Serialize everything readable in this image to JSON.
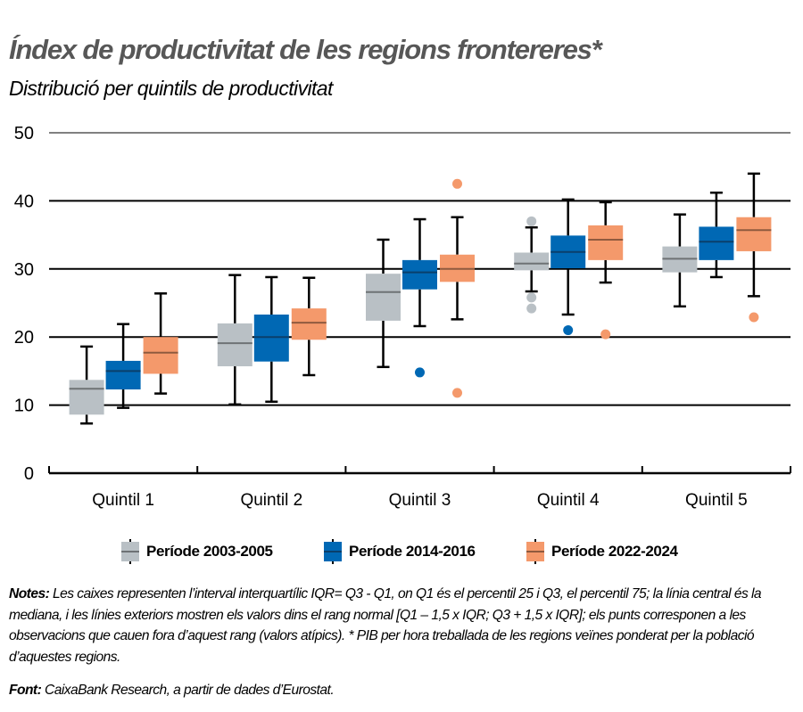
{
  "header": {
    "title": "Índex de productivitat de les regions frontereres*",
    "subtitle": "Distribució per quintils de productivitat"
  },
  "colors": {
    "p2003": "#B9C0C5",
    "p2014": "#0068B4",
    "p2022": "#F4996B",
    "title": "#575757",
    "median_gray": "#6E7275",
    "median_blue": "#0A3F6B",
    "median_orange": "#8F5A3E"
  },
  "legend": {
    "items": [
      {
        "label": "Període 2003-2005",
        "color_key": "p2003"
      },
      {
        "label": "Període 2014-2016",
        "color_key": "p2014"
      },
      {
        "label": "Període 2022-2024",
        "color_key": "p2022"
      }
    ]
  },
  "notes": {
    "label": "Notes:",
    "text": " Les caixes representen l’interval interquartílic IQR= Q3 - Q1, on Q1 és el percentil 25 i Q3, el percentil 75; la línia central és la mediana, i les línies exteriors mostren els valors dins el rang normal [Q1 – 1,5 x IQR; Q3 + 1,5 x IQR]; els punts corresponen a les observacions que cauen fora d’aquest rang (valors atípics). * PIB per hora treballada de les regions veïnes ponderat per la població d’aquestes regions."
  },
  "source": {
    "label": "Font:",
    "text": " CaixaBank Research, a partir de dades d’Eurostat."
  },
  "chart_data": {
    "type": "boxplot",
    "title": "Índex de productivitat de les regions frontereres*",
    "subtitle": "Distribució per quintils de productivitat",
    "xlabel": "",
    "ylabel": "",
    "ylim": [
      0,
      50
    ],
    "yticks": [
      0,
      10,
      20,
      30,
      40,
      50
    ],
    "grid": true,
    "legend_position": "bottom",
    "categories": [
      "Quintil 1",
      "Quintil 2",
      "Quintil 3",
      "Quintil 4",
      "Quintil 5"
    ],
    "series": [
      {
        "name": "Període 2003-2005",
        "color": "#B9C0C5",
        "boxes": [
          {
            "whisker_low": 7.3,
            "q1": 8.6,
            "median": 12.4,
            "q3": 13.7,
            "whisker_high": 18.6,
            "outliers": []
          },
          {
            "whisker_low": 10.1,
            "q1": 15.7,
            "median": 19.1,
            "q3": 22.0,
            "whisker_high": 29.1,
            "outliers": []
          },
          {
            "whisker_low": 15.6,
            "q1": 22.4,
            "median": 26.6,
            "q3": 29.3,
            "whisker_high": 34.3,
            "outliers": []
          },
          {
            "whisker_low": 26.7,
            "q1": 29.8,
            "median": 30.8,
            "q3": 32.4,
            "whisker_high": 36.1,
            "outliers": [
              37.0,
              25.8,
              24.2
            ]
          },
          {
            "whisker_low": 24.5,
            "q1": 29.5,
            "median": 31.5,
            "q3": 33.3,
            "whisker_high": 38.0,
            "outliers": []
          }
        ]
      },
      {
        "name": "Període 2014-2016",
        "color": "#0068B4",
        "boxes": [
          {
            "whisker_low": 9.6,
            "q1": 12.3,
            "median": 15.0,
            "q3": 16.5,
            "whisker_high": 21.9,
            "outliers": []
          },
          {
            "whisker_low": 10.5,
            "q1": 16.4,
            "median": 20.0,
            "q3": 23.3,
            "whisker_high": 28.8,
            "outliers": []
          },
          {
            "whisker_low": 21.6,
            "q1": 27.0,
            "median": 29.5,
            "q3": 31.3,
            "whisker_high": 37.3,
            "outliers": [
              14.8
            ]
          },
          {
            "whisker_low": 23.3,
            "q1": 30.1,
            "median": 32.5,
            "q3": 34.9,
            "whisker_high": 40.2,
            "outliers": [
              21.0
            ]
          },
          {
            "whisker_low": 28.8,
            "q1": 31.3,
            "median": 34.0,
            "q3": 36.2,
            "whisker_high": 41.2,
            "outliers": []
          }
        ]
      },
      {
        "name": "Període 2022-2024",
        "color": "#F4996B",
        "boxes": [
          {
            "whisker_low": 11.7,
            "q1": 14.6,
            "median": 17.7,
            "q3": 20.0,
            "whisker_high": 26.4,
            "outliers": []
          },
          {
            "whisker_low": 14.4,
            "q1": 19.6,
            "median": 22.1,
            "q3": 24.2,
            "whisker_high": 28.7,
            "outliers": []
          },
          {
            "whisker_low": 22.6,
            "q1": 28.1,
            "median": 30.0,
            "q3": 32.1,
            "whisker_high": 37.6,
            "outliers": [
              42.5,
              11.8
            ]
          },
          {
            "whisker_low": 28.0,
            "q1": 31.3,
            "median": 34.3,
            "q3": 36.4,
            "whisker_high": 39.8,
            "outliers": [
              20.4
            ]
          },
          {
            "whisker_low": 26.0,
            "q1": 32.6,
            "median": 35.7,
            "q3": 37.6,
            "whisker_high": 44.0,
            "outliers": [
              22.9
            ]
          }
        ]
      }
    ]
  }
}
